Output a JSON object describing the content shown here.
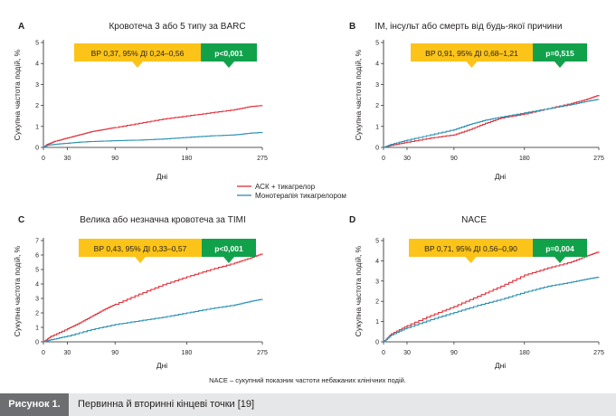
{
  "colors": {
    "red": "#e0303a",
    "blue": "#2a8fb3",
    "hr_box": "#fcc419",
    "p_box": "#12a14b",
    "axis": "#231f20"
  },
  "legend": {
    "items": [
      {
        "label": "АСК + тикагрелор",
        "color": "#e0303a"
      },
      {
        "label": "Монотерапія тикагрелором",
        "color": "#2a8fb3"
      }
    ]
  },
  "footnote": "NACE – сукупний показник частоти небажаних клінічних подій.",
  "caption": {
    "tag": "Рисунок 1.",
    "text": "Первинна й вторинні кінцеві точки [19]"
  },
  "chart_data": [
    {
      "letter": "A",
      "type": "line",
      "title": "Кровотеча 3 або 5 типу за BARC",
      "xlabel": "Дні",
      "ylabel": "Сукупна частота подій, %",
      "xticks": [
        0,
        30,
        90,
        180,
        275
      ],
      "yticks": [
        0,
        1,
        2,
        3,
        4,
        5
      ],
      "xlim": [
        0,
        275
      ],
      "ylim": [
        0,
        5
      ],
      "hr_text": "ВР 0,37, 95% ДІ 0,24–0,56",
      "p_text": "p<0,001",
      "series": [
        {
          "name": "АСК + тикагрелор",
          "color": "#e0303a",
          "x": [
            0,
            5,
            15,
            30,
            45,
            60,
            75,
            90,
            120,
            150,
            180,
            210,
            240,
            260,
            275
          ],
          "y": [
            0,
            0.15,
            0.3,
            0.45,
            0.6,
            0.75,
            0.85,
            0.95,
            1.15,
            1.35,
            1.5,
            1.65,
            1.8,
            1.95,
            2.0
          ]
        },
        {
          "name": "Монотерапія тикагрелором",
          "color": "#2a8fb3",
          "x": [
            0,
            5,
            15,
            30,
            45,
            60,
            90,
            120,
            150,
            180,
            210,
            240,
            260,
            275
          ],
          "y": [
            0,
            0.1,
            0.15,
            0.2,
            0.25,
            0.28,
            0.32,
            0.35,
            0.4,
            0.48,
            0.55,
            0.6,
            0.68,
            0.72
          ]
        }
      ]
    },
    {
      "letter": "B",
      "type": "line",
      "title": "ІМ, інсульт або смерть від будь-якої причини",
      "xlabel": "Дні",
      "ylabel": "Сукупна частота подій, %",
      "xticks": [
        0,
        30,
        90,
        180,
        275
      ],
      "yticks": [
        0,
        1,
        2,
        3,
        4,
        5
      ],
      "xlim": [
        0,
        275
      ],
      "ylim": [
        0,
        5
      ],
      "hr_text": "ВР 0,91, 95% ДІ 0,68–1,21",
      "p_text": "p=0,515",
      "series": [
        {
          "name": "АСК + тикагрелор",
          "color": "#e0303a",
          "x": [
            0,
            10,
            30,
            60,
            90,
            110,
            130,
            150,
            180,
            210,
            240,
            260,
            275
          ],
          "y": [
            0,
            0.1,
            0.25,
            0.45,
            0.6,
            0.85,
            1.15,
            1.4,
            1.6,
            1.85,
            2.1,
            2.3,
            2.5
          ]
        },
        {
          "name": "Монотерапія тикагрелором",
          "color": "#2a8fb3",
          "x": [
            0,
            10,
            30,
            60,
            90,
            110,
            130,
            150,
            180,
            210,
            240,
            260,
            275
          ],
          "y": [
            0,
            0.15,
            0.35,
            0.6,
            0.85,
            1.1,
            1.3,
            1.45,
            1.65,
            1.85,
            2.05,
            2.2,
            2.3
          ]
        }
      ]
    },
    {
      "letter": "C",
      "type": "line",
      "title": "Велика або незначна кровотеча за TIMI",
      "xlabel": "Дні",
      "ylabel": "Сукупна частота подій, %",
      "xticks": [
        0,
        30,
        90,
        180,
        275
      ],
      "yticks": [
        0,
        1,
        2,
        3,
        4,
        5,
        6,
        7
      ],
      "xlim": [
        0,
        275
      ],
      "ylim": [
        0,
        7
      ],
      "hr_text": "ВР 0,43, 95% ДІ 0,33–0,57",
      "p_text": "p<0,001",
      "series": [
        {
          "name": "АСК + тикагрелор",
          "color": "#e0303a",
          "x": [
            0,
            10,
            30,
            45,
            60,
            75,
            90,
            120,
            150,
            180,
            210,
            240,
            260,
            275
          ],
          "y": [
            0,
            0.4,
            0.9,
            1.3,
            1.75,
            2.2,
            2.6,
            3.3,
            3.95,
            4.5,
            5.0,
            5.45,
            5.8,
            6.1
          ]
        },
        {
          "name": "Монотерапія тикагрелором",
          "color": "#2a8fb3",
          "x": [
            0,
            10,
            30,
            60,
            90,
            120,
            150,
            180,
            210,
            240,
            260,
            275
          ],
          "y": [
            0,
            0.15,
            0.4,
            0.85,
            1.2,
            1.45,
            1.7,
            2.0,
            2.3,
            2.55,
            2.8,
            2.95
          ]
        }
      ]
    },
    {
      "letter": "D",
      "type": "line",
      "title": "NACE",
      "xlabel": "Дні",
      "ylabel": "Сукупна частота подій, %",
      "xticks": [
        0,
        30,
        90,
        180,
        275
      ],
      "yticks": [
        0,
        1,
        2,
        3,
        4,
        5
      ],
      "xlim": [
        0,
        275
      ],
      "ylim": [
        0,
        5
      ],
      "hr_text": "ВР 0,71, 95% ДІ 0,56–0,90",
      "p_text": "p=0,004",
      "series": [
        {
          "name": "АСК + тикагрелор",
          "color": "#e0303a",
          "x": [
            0,
            10,
            30,
            60,
            90,
            120,
            150,
            180,
            210,
            240,
            260,
            275
          ],
          "y": [
            0,
            0.4,
            0.8,
            1.3,
            1.75,
            2.25,
            2.75,
            3.3,
            3.65,
            3.95,
            4.25,
            4.45
          ]
        },
        {
          "name": "Монотерапія тикагрелором",
          "color": "#2a8fb3",
          "x": [
            0,
            10,
            30,
            60,
            90,
            120,
            150,
            180,
            210,
            240,
            260,
            275
          ],
          "y": [
            0,
            0.35,
            0.7,
            1.1,
            1.45,
            1.8,
            2.1,
            2.45,
            2.75,
            2.95,
            3.1,
            3.2
          ]
        }
      ]
    }
  ]
}
